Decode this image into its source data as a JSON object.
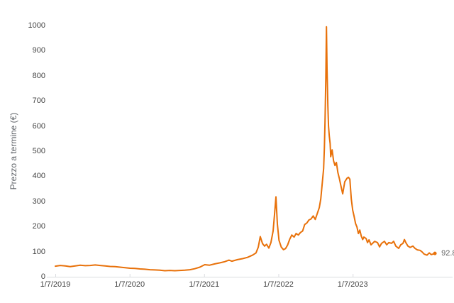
{
  "chart": {
    "y_axis_title": "Prezzo a termine (€)",
    "y_tick_labels": [
      "0",
      "100",
      "200",
      "300",
      "400",
      "500",
      "600",
      "700",
      "800",
      "900",
      "1000"
    ],
    "x_tick_labels": [
      "1/7/2019",
      "1/7/2020",
      "1/7/2021",
      "1/7/2022",
      "1/7/2023"
    ],
    "last_value_label": "92.8",
    "line_color": "#E8710A",
    "axis_color": "#DADCE0",
    "tick_text_color": "#444444",
    "title_text_color": "#5F6368",
    "background_color": "#FFFFFF"
  },
  "chart_data": {
    "type": "line",
    "title": "",
    "xlabel": "",
    "ylabel": "Prezzo a termine (€)",
    "ylim": [
      0,
      1000
    ],
    "y_ticks": [
      0,
      100,
      200,
      300,
      400,
      500,
      600,
      700,
      800,
      900,
      1000
    ],
    "x_ticks": [
      "1/7/2019",
      "1/7/2020",
      "1/7/2021",
      "1/7/2022",
      "1/7/2023"
    ],
    "grid": false,
    "legend": "none",
    "last_value_annotation": 92.8,
    "series": [
      {
        "name": "Prezzo a termine (€)",
        "color": "#E8710A",
        "points": [
          [
            "2019-01-07",
            42
          ],
          [
            "2019-01-31",
            45
          ],
          [
            "2019-02-25",
            43
          ],
          [
            "2019-03-21",
            40
          ],
          [
            "2019-04-15",
            43
          ],
          [
            "2019-05-09",
            46
          ],
          [
            "2019-06-03",
            44
          ],
          [
            "2019-06-27",
            45
          ],
          [
            "2019-07-22",
            47
          ],
          [
            "2019-08-15",
            45
          ],
          [
            "2019-09-09",
            43
          ],
          [
            "2019-10-03",
            41
          ],
          [
            "2019-10-28",
            40
          ],
          [
            "2019-11-21",
            38
          ],
          [
            "2019-12-16",
            36
          ],
          [
            "2020-01-09",
            34
          ],
          [
            "2020-02-02",
            33
          ],
          [
            "2020-02-27",
            31
          ],
          [
            "2020-03-22",
            30
          ],
          [
            "2020-04-16",
            28
          ],
          [
            "2020-05-10",
            27
          ],
          [
            "2020-06-04",
            26
          ],
          [
            "2020-06-28",
            24
          ],
          [
            "2020-07-23",
            25
          ],
          [
            "2020-08-16",
            24
          ],
          [
            "2020-09-10",
            25
          ],
          [
            "2020-10-04",
            26
          ],
          [
            "2020-10-29",
            28
          ],
          [
            "2020-11-22",
            32
          ],
          [
            "2020-12-17",
            38
          ],
          [
            "2021-01-10",
            48
          ],
          [
            "2021-02-03",
            46
          ],
          [
            "2021-02-28",
            51
          ],
          [
            "2021-03-24",
            55
          ],
          [
            "2021-04-18",
            60
          ],
          [
            "2021-05-09",
            66
          ],
          [
            "2021-05-23",
            62
          ],
          [
            "2021-06-20",
            68
          ],
          [
            "2021-07-15",
            72
          ],
          [
            "2021-08-08",
            77
          ],
          [
            "2021-09-02",
            86
          ],
          [
            "2021-09-19",
            95
          ],
          [
            "2021-09-30",
            118
          ],
          [
            "2021-10-10",
            160
          ],
          [
            "2021-10-21",
            132
          ],
          [
            "2021-10-31",
            122
          ],
          [
            "2021-11-10",
            129
          ],
          [
            "2021-11-21",
            114
          ],
          [
            "2021-12-01",
            136
          ],
          [
            "2021-12-12",
            182
          ],
          [
            "2021-12-19",
            248
          ],
          [
            "2021-12-26",
            318
          ],
          [
            "2022-01-02",
            210
          ],
          [
            "2022-01-10",
            145
          ],
          [
            "2022-01-21",
            118
          ],
          [
            "2022-02-01",
            108
          ],
          [
            "2022-02-11",
            112
          ],
          [
            "2022-02-21",
            126
          ],
          [
            "2022-03-04",
            150
          ],
          [
            "2022-03-14",
            166
          ],
          [
            "2022-03-25",
            158
          ],
          [
            "2022-04-04",
            172
          ],
          [
            "2022-04-15",
            166
          ],
          [
            "2022-04-25",
            176
          ],
          [
            "2022-05-06",
            182
          ],
          [
            "2022-05-16",
            208
          ],
          [
            "2022-05-27",
            214
          ],
          [
            "2022-06-06",
            226
          ],
          [
            "2022-06-16",
            230
          ],
          [
            "2022-06-27",
            242
          ],
          [
            "2022-07-07",
            228
          ],
          [
            "2022-07-17",
            252
          ],
          [
            "2022-07-27",
            275
          ],
          [
            "2022-08-03",
            310
          ],
          [
            "2022-08-10",
            370
          ],
          [
            "2022-08-17",
            430
          ],
          [
            "2022-08-21",
            515
          ],
          [
            "2022-08-24",
            620
          ],
          [
            "2022-08-28",
            790
          ],
          [
            "2022-08-31",
            995
          ],
          [
            "2022-09-03",
            830
          ],
          [
            "2022-09-07",
            680
          ],
          [
            "2022-09-10",
            600
          ],
          [
            "2022-09-14",
            560
          ],
          [
            "2022-09-18",
            530
          ],
          [
            "2022-09-21",
            478
          ],
          [
            "2022-09-28",
            505
          ],
          [
            "2022-10-05",
            462
          ],
          [
            "2022-10-12",
            443
          ],
          [
            "2022-10-19",
            455
          ],
          [
            "2022-10-26",
            415
          ],
          [
            "2022-11-02",
            392
          ],
          [
            "2022-11-12",
            355
          ],
          [
            "2022-11-19",
            330
          ],
          [
            "2022-11-29",
            378
          ],
          [
            "2022-12-10",
            392
          ],
          [
            "2022-12-17",
            396
          ],
          [
            "2022-12-24",
            388
          ],
          [
            "2022-12-31",
            310
          ],
          [
            "2023-01-07",
            265
          ],
          [
            "2023-01-14",
            240
          ],
          [
            "2023-01-21",
            212
          ],
          [
            "2023-01-28",
            198
          ],
          [
            "2023-02-04",
            172
          ],
          [
            "2023-02-11",
            186
          ],
          [
            "2023-02-18",
            162
          ],
          [
            "2023-02-25",
            148
          ],
          [
            "2023-03-03",
            158
          ],
          [
            "2023-03-14",
            152
          ],
          [
            "2023-03-21",
            136
          ],
          [
            "2023-03-28",
            147
          ],
          [
            "2023-04-07",
            127
          ],
          [
            "2023-04-25",
            141
          ],
          [
            "2023-05-09",
            136
          ],
          [
            "2023-05-19",
            119
          ],
          [
            "2023-05-29",
            133
          ],
          [
            "2023-06-12",
            141
          ],
          [
            "2023-06-23",
            127
          ],
          [
            "2023-07-03",
            136
          ],
          [
            "2023-07-17",
            133
          ],
          [
            "2023-07-27",
            141
          ],
          [
            "2023-08-07",
            122
          ],
          [
            "2023-08-21",
            113
          ],
          [
            "2023-08-31",
            127
          ],
          [
            "2023-09-11",
            133
          ],
          [
            "2023-09-18",
            148
          ],
          [
            "2023-09-25",
            136
          ],
          [
            "2023-10-05",
            122
          ],
          [
            "2023-10-16",
            117
          ],
          [
            "2023-10-30",
            122
          ],
          [
            "2023-11-09",
            113
          ],
          [
            "2023-11-20",
            107
          ],
          [
            "2023-12-04",
            105
          ],
          [
            "2023-12-14",
            99
          ],
          [
            "2023-12-24",
            90
          ],
          [
            "2024-01-07",
            86
          ],
          [
            "2024-01-18",
            95
          ],
          [
            "2024-01-28",
            88
          ],
          [
            "2024-02-08",
            91
          ],
          [
            "2024-02-15",
            92.8
          ]
        ]
      }
    ]
  }
}
